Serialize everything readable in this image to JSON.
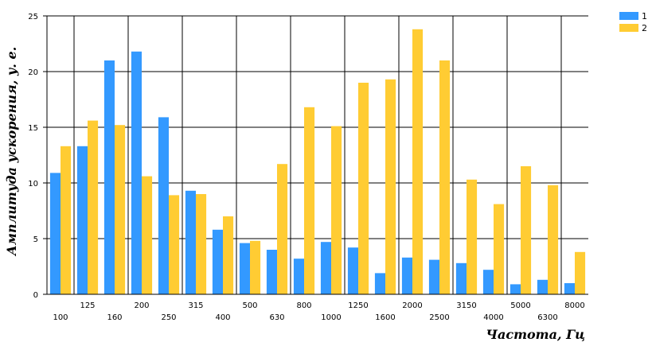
{
  "chart_data": {
    "type": "bar",
    "title": "",
    "xlabel": "Частота, Гц",
    "ylabel": "Амплитуда ускорения, у. е.",
    "ylim": [
      0,
      25
    ],
    "yticks": [
      0,
      5,
      10,
      15,
      20,
      25
    ],
    "grid": true,
    "legend_position": "top-right",
    "categories": [
      "100",
      "125",
      "160",
      "200",
      "250",
      "315",
      "400",
      "500",
      "630",
      "800",
      "1000",
      "1250",
      "1600",
      "2000",
      "2500",
      "3150",
      "4000",
      "5000",
      "6300",
      "8000"
    ],
    "series": [
      {
        "name": "1",
        "color": "#3399ff",
        "values": [
          10.9,
          13.3,
          21.0,
          21.8,
          15.9,
          9.3,
          5.8,
          4.6,
          4.0,
          3.2,
          4.7,
          4.2,
          1.9,
          3.3,
          3.1,
          2.8,
          2.2,
          0.9,
          1.3,
          1.0
        ]
      },
      {
        "name": "2",
        "color": "#ffcc33",
        "values": [
          13.3,
          15.6,
          15.2,
          10.6,
          8.9,
          9.0,
          7.0,
          4.8,
          11.7,
          16.8,
          15.1,
          19.0,
          19.3,
          23.8,
          21.0,
          10.3,
          8.1,
          11.5,
          9.8,
          3.8
        ]
      }
    ]
  }
}
